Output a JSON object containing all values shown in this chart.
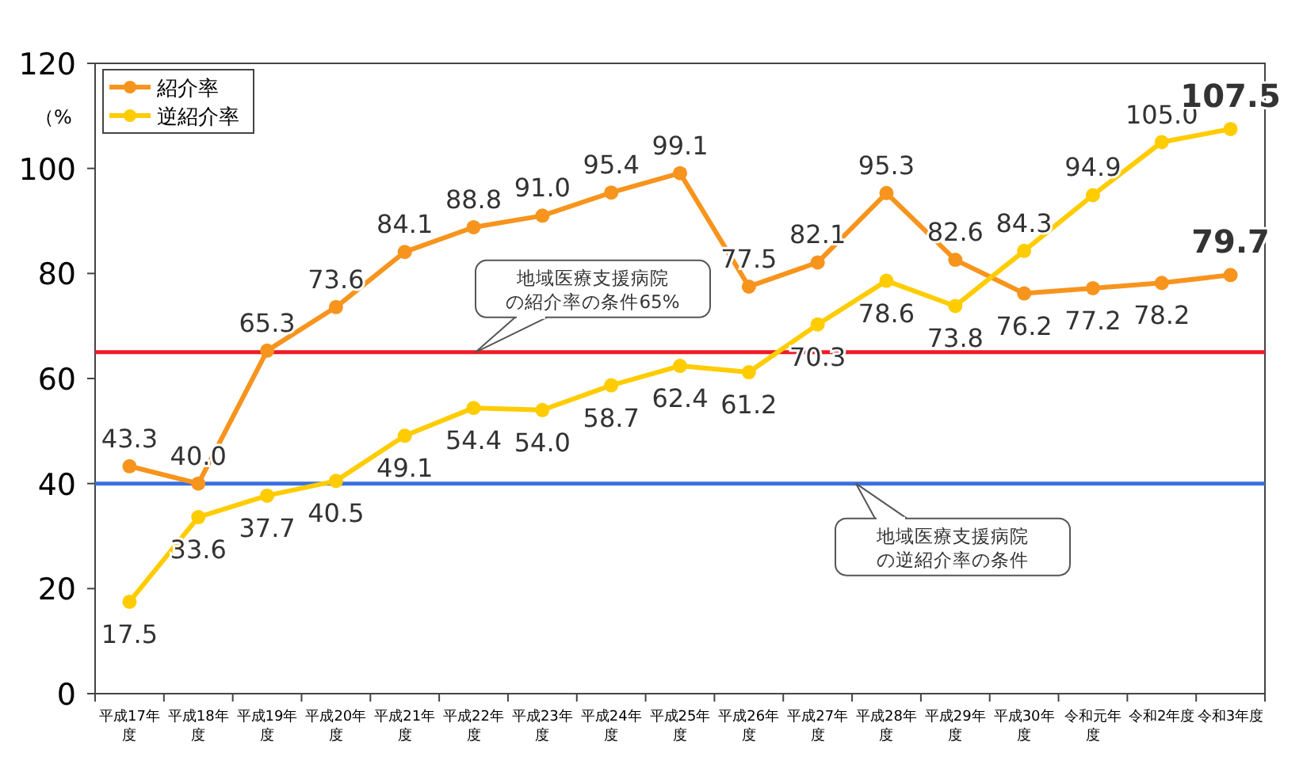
{
  "chart_data": {
    "type": "line",
    "ylabel": "（%",
    "categories": [
      "平成17年度",
      "平成18年度",
      "平成19年度",
      "平成20年度",
      "平成21年度",
      "平成22年度",
      "平成23年度",
      "平成24年度",
      "平成25年度",
      "平成26年度",
      "平成27年度",
      "平成28年度",
      "平成29年度",
      "平成30年度",
      "令和元年度",
      "令和2年度",
      "令和3年度"
    ],
    "series": [
      {
        "name": "紹介率",
        "color": "#f7941d",
        "values": [
          43.3,
          40.0,
          65.3,
          73.6,
          84.1,
          88.8,
          91.0,
          95.4,
          99.1,
          77.5,
          82.1,
          95.3,
          82.6,
          76.2,
          77.2,
          78.2,
          79.7
        ],
        "value_labels": [
          "43.3",
          "40.0",
          "65.3",
          "73.6",
          "84.1",
          "88.8",
          "91.0",
          "95.4",
          "99.1",
          "77.5",
          "82.1",
          "95.3",
          "82.6",
          "76.2",
          "77.2",
          "78.2",
          "79.7"
        ]
      },
      {
        "name": "逆紹介率",
        "color": "#ffcc00",
        "values": [
          17.5,
          33.6,
          37.7,
          40.5,
          49.1,
          54.4,
          54.0,
          58.7,
          62.4,
          61.2,
          70.3,
          78.6,
          73.8,
          84.3,
          94.9,
          105.0,
          107.5
        ],
        "value_labels": [
          "17.5",
          "33.6",
          "37.7",
          "40.5",
          "49.1",
          "54.4",
          "54.0",
          "58.7",
          "62.4",
          "61.2",
          "70.3",
          "78.6",
          "73.8",
          "84.3",
          "94.9",
          "105.0",
          "107.5"
        ]
      }
    ],
    "ylim": [
      0,
      120
    ],
    "yticks": [
      0,
      20,
      40,
      60,
      80,
      100,
      120
    ],
    "marker": "circle",
    "line_style": "solid",
    "legend": "top left",
    "grid": false,
    "ref_lines": [
      {
        "axis": "y",
        "value": 65,
        "label": "地域医療支援病院の紹介率の条件65%",
        "color": "#ee1c25"
      },
      {
        "axis": "y",
        "value": 40,
        "label": "地域医療支援病院の逆紹介率の条件",
        "color": "#3b6fe0"
      }
    ]
  }
}
